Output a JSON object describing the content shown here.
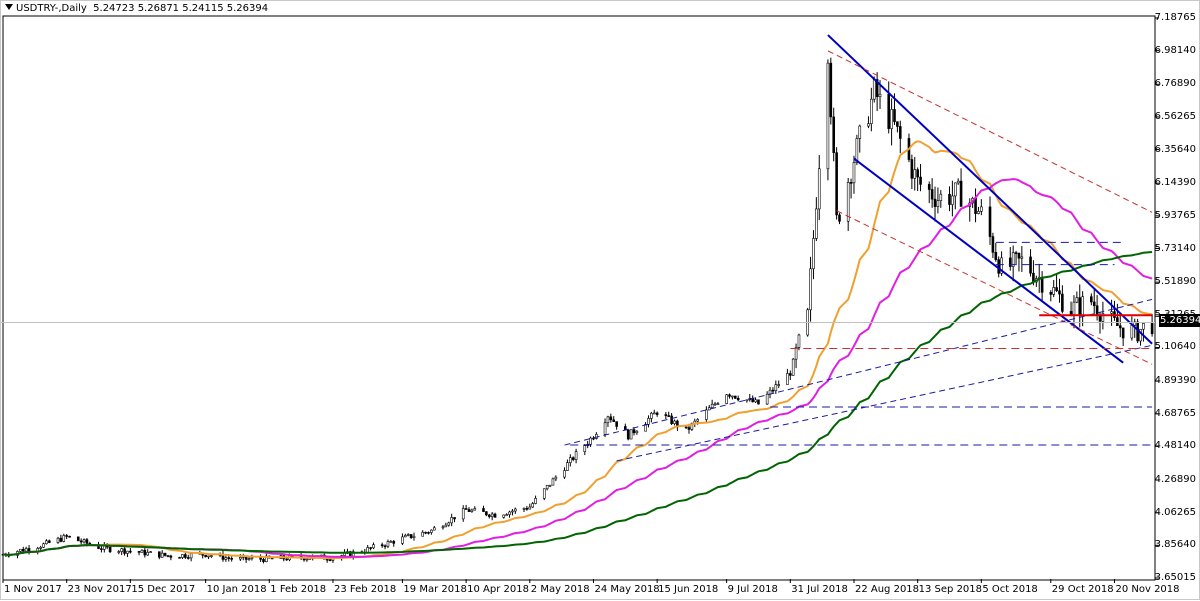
{
  "chart_header": {
    "symbol_timeframe": "USDTRY-,Daily",
    "ohlc": "5.24723 5.26871 5.24115 5.26394"
  },
  "current_price": "5.26394",
  "colors": {
    "background": "#ffffff",
    "candle": "#000000",
    "ma_fast": "#f0a030",
    "ma_mid": "#e020e0",
    "ma_slow": "#006400",
    "channel": "#0000c0",
    "trend_dashed_red": "#c83232",
    "support_dashed_blue": "#1a1aa0",
    "resistance_red": "#e00000",
    "current_line": "#c0c0c0"
  },
  "chart_data": {
    "type": "candlestick",
    "title": "USDTRY-,Daily",
    "y_ticks": [
      "7.18765",
      "6.98140",
      "6.76890",
      "6.56265",
      "6.35640",
      "6.14390",
      "5.93765",
      "5.73140",
      "5.51890",
      "5.31265",
      "5.10640",
      "4.89390",
      "4.68765",
      "4.48140",
      "4.26890",
      "4.06265",
      "3.85640",
      "3.65015"
    ],
    "x_ticks": [
      "1 Nov 2017",
      "23 Nov 2017",
      "15 Dec 2017",
      "10 Jan 2018",
      "1 Feb 2018",
      "23 Feb 2018",
      "19 Mar 2018",
      "10 Apr 2018",
      "2 May 2018",
      "24 May 2018",
      "15 Jun 2018",
      "9 Jul 2018",
      "31 Jul 2018",
      "22 Aug 2018",
      "13 Sep 2018",
      "5 Oct 2018",
      "29 Oct 2018",
      "20 Nov 2018"
    ],
    "ylim": [
      3.65015,
      7.18765
    ],
    "grid": false,
    "close_series": [
      [
        "1 Nov 2017",
        3.8
      ],
      [
        "15 Nov 2017",
        3.86
      ],
      [
        "23 Nov 2017",
        3.91
      ],
      [
        "5 Dec 2017",
        3.84
      ],
      [
        "15 Dec 2017",
        3.82
      ],
      [
        "28 Dec 2017",
        3.79
      ],
      [
        "10 Jan 2018",
        3.8
      ],
      [
        "20 Jan 2018",
        3.77
      ],
      [
        "1 Feb 2018",
        3.77
      ],
      [
        "12 Feb 2018",
        3.78
      ],
      [
        "23 Feb 2018",
        3.78
      ],
      [
        "5 Mar 2018",
        3.82
      ],
      [
        "19 Mar 2018",
        3.9
      ],
      [
        "29 Mar 2018",
        3.95
      ],
      [
        "10 Apr 2018",
        4.08
      ],
      [
        "20 Apr 2018",
        4.05
      ],
      [
        "2 May 2018",
        4.1
      ],
      [
        "14 May 2018",
        4.35
      ],
      [
        "24 May 2018",
        4.55
      ],
      [
        "29 May 2018",
        4.68
      ],
      [
        "5 Jun 2018",
        4.55
      ],
      [
        "15 Jun 2018",
        4.7
      ],
      [
        "25 Jun 2018",
        4.58
      ],
      [
        "9 Jul 2018",
        4.82
      ],
      [
        "20 Jul 2018",
        4.75
      ],
      [
        "31 Jul 2018",
        4.95
      ],
      [
        "6 Aug 2018",
        5.3
      ],
      [
        "10 Aug 2018",
        6.3
      ],
      [
        "13 Aug 2018",
        7.0
      ],
      [
        "16 Aug 2018",
        5.9
      ],
      [
        "22 Aug 2018",
        6.3
      ],
      [
        "29 Aug 2018",
        6.72
      ],
      [
        "5 Sep 2018",
        6.5
      ],
      [
        "13 Sep 2018",
        6.15
      ],
      [
        "20 Sep 2018",
        6.05
      ],
      [
        "28 Sep 2018",
        6.08
      ],
      [
        "5 Oct 2018",
        5.95
      ],
      [
        "12 Oct 2018",
        5.6
      ],
      [
        "19 Oct 2018",
        5.65
      ],
      [
        "29 Oct 2018",
        5.48
      ],
      [
        "5 Nov 2018",
        5.35
      ],
      [
        "12 Nov 2018",
        5.4
      ],
      [
        "20 Nov 2018",
        5.25
      ],
      [
        "27 Nov 2018",
        5.2
      ],
      [
        "3 Dec 2018",
        5.26
      ]
    ],
    "horizontal_levels": [
      {
        "name": "resistance",
        "value": 5.31,
        "style": "solid red"
      },
      {
        "name": "support_1",
        "value": 5.77,
        "style": "dashed blue"
      },
      {
        "name": "support_2",
        "value": 5.63,
        "style": "dashed blue"
      },
      {
        "name": "support_3",
        "value": 5.1,
        "style": "dashed red"
      },
      {
        "name": "support_4",
        "value": 4.73,
        "style": "dashed blue"
      },
      {
        "name": "support_5",
        "value": 4.49,
        "style": "dashed blue"
      }
    ]
  }
}
